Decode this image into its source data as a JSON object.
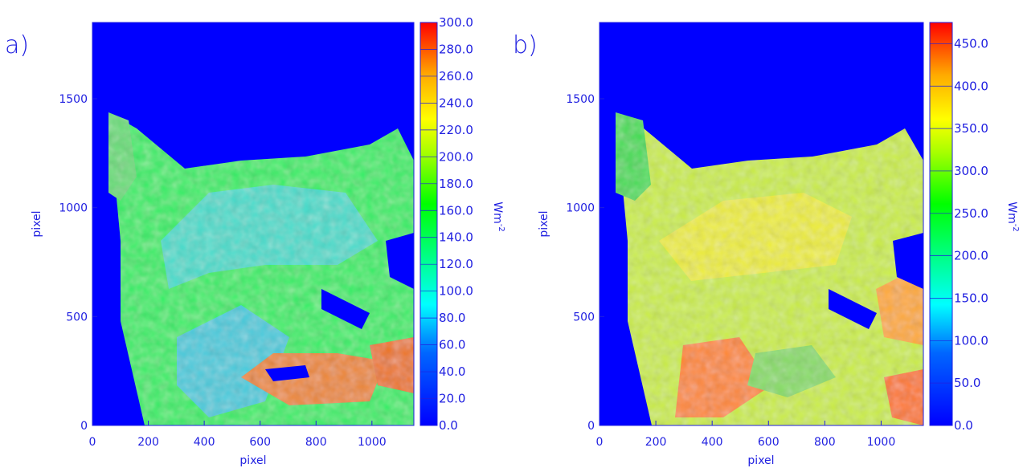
{
  "chart_data": [
    {
      "type": "heatmap",
      "panel_label": "a)",
      "xlabel": "pixel",
      "ylabel": "pixel",
      "xlim": [
        0,
        1150
      ],
      "ylim": [
        0,
        1850
      ],
      "x_ticks": [
        0,
        200,
        400,
        600,
        800,
        1000
      ],
      "y_ticks": [
        0,
        500,
        1000,
        1500
      ],
      "x_tick_labels": [
        "0",
        "200",
        "400",
        "600",
        "800",
        "1000"
      ],
      "y_tick_labels": [
        "0",
        "500",
        "1000",
        "1500"
      ],
      "colorbar": {
        "label": "Wm",
        "label_exponent": "-2",
        "min": 0,
        "max": 300,
        "ticks": [
          0,
          20,
          40,
          60,
          80,
          100,
          120,
          140,
          160,
          180,
          200,
          220,
          240,
          260,
          280,
          300
        ],
        "tick_labels": [
          "0.0",
          "20.0",
          "40.0",
          "60.0",
          "80.0",
          "100.0",
          "120.0",
          "140.0",
          "160.0",
          "180.0",
          "200.0",
          "220.0",
          "240.0",
          "260.0",
          "280.0",
          "300.0"
        ]
      }
    },
    {
      "type": "heatmap",
      "panel_label": "b)",
      "xlabel": "pixel",
      "ylabel": "pixel",
      "xlim": [
        0,
        1150
      ],
      "ylim": [
        0,
        1850
      ],
      "x_ticks": [
        0,
        200,
        400,
        600,
        800,
        1000
      ],
      "y_ticks": [
        0,
        500,
        1000,
        1500
      ],
      "x_tick_labels": [
        "0",
        "200",
        "400",
        "600",
        "800",
        "1000"
      ],
      "y_tick_labels": [
        "0",
        "500",
        "1000",
        "1500"
      ],
      "colorbar": {
        "label": "Wm",
        "label_exponent": "-2",
        "min": 0,
        "max": 475,
        "ticks": [
          0,
          50,
          100,
          150,
          200,
          250,
          300,
          350,
          400,
          450
        ],
        "tick_labels": [
          "0.0",
          "50.0",
          "100.0",
          "150.0",
          "200.0",
          "250.0",
          "300.0",
          "350.0",
          "400.0",
          "450.0"
        ]
      }
    }
  ],
  "colors": {
    "background_field": "#0000ff",
    "axis_text": "#1f1fe0"
  }
}
